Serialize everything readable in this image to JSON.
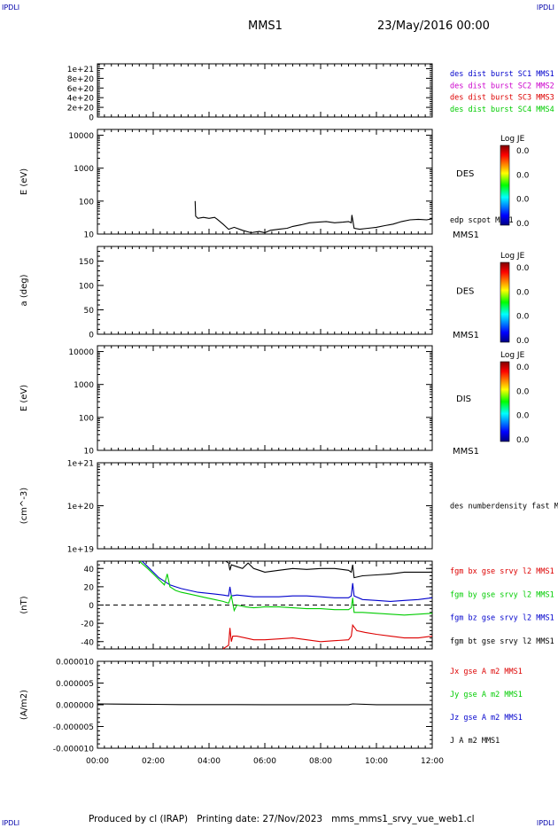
{
  "header": {
    "ipdli_left": "IPDLI",
    "ipdli_right": "IPDLI",
    "spacecraft": "MMS1",
    "datetime": "23/May/2016 00:00"
  },
  "footer": {
    "text": "Produced by cl (IRAP)   Printing date: 27/Nov/2023   mms_mms1_srvy_vue_web1.cl",
    "ipdli_left": "IPDLI",
    "ipdli_right": "IPDLI"
  },
  "colors": {
    "black": "#000000",
    "blue": "#0000cc",
    "magenta": "#cc00cc",
    "red": "#dd0000",
    "green": "#00cc00"
  },
  "chart_data": [
    {
      "type": "line",
      "panel": "dist",
      "ylabel": "",
      "ylim": [
        0,
        1.1e+21
      ],
      "yticks": [
        "0",
        "2e+20",
        "4e+20",
        "6e+20",
        "8e+20",
        "1e+21"
      ],
      "dashed_zero": true,
      "legend": [
        {
          "text": "des dist burst SC1 MMS1",
          "color": "blue"
        },
        {
          "text": "des dist burst SC2 MMS2",
          "color": "magenta"
        },
        {
          "text": "des dist burst SC3 MMS3",
          "color": "red"
        },
        {
          "text": "des dist burst SC4 MMS4",
          "color": "green"
        }
      ],
      "series": []
    },
    {
      "type": "line",
      "panel": "des_energy",
      "ylabel": "E (eV)",
      "yscale": "log",
      "ylim": [
        10,
        15000
      ],
      "yticks": [
        "10",
        "100",
        "1000",
        "10000"
      ],
      "label": "DES",
      "sublabel": "MMS1",
      "colorbar": {
        "title": "Log JE",
        "ticks": [
          "0.0",
          "0.0",
          "0.0",
          "0.0"
        ]
      },
      "series": [
        {
          "name": "edp scpot MMS1",
          "color": "black",
          "x": [
            3.5,
            3.52,
            3.6,
            3.8,
            4.0,
            4.2,
            4.3,
            4.5,
            4.7,
            4.9,
            5.2,
            5.5,
            5.8,
            6.0,
            6.2,
            6.5,
            6.8,
            7.0,
            7.3,
            7.6,
            7.9,
            8.2,
            8.5,
            8.8,
            9.0,
            9.1,
            9.12,
            9.2,
            9.4,
            9.7,
            10.0,
            10.3,
            10.6,
            10.9,
            11.2,
            11.5,
            11.8,
            12.0
          ],
          "y": [
            100,
            35,
            30,
            32,
            30,
            32,
            28,
            20,
            14,
            16,
            13,
            11,
            12,
            11,
            13,
            14,
            15,
            17,
            19,
            22,
            23,
            24,
            22,
            23,
            24,
            22,
            38,
            15,
            14,
            15,
            16,
            18,
            20,
            24,
            27,
            28,
            27,
            29
          ]
        }
      ]
    },
    {
      "type": "heatmap",
      "panel": "des_pitch",
      "ylabel": "a (deg)",
      "ylim": [
        0,
        180
      ],
      "yticks": [
        "0",
        "50",
        "100",
        "150"
      ],
      "label": "DES",
      "sublabel": "MMS1",
      "colorbar": {
        "title": "Log JE",
        "ticks": [
          "0.0",
          "0.0",
          "0.0",
          "0.0"
        ]
      },
      "series": []
    },
    {
      "type": "heatmap",
      "panel": "dis_energy",
      "ylabel": "E (eV)",
      "yscale": "log",
      "ylim": [
        10,
        15000
      ],
      "yticks": [
        "10",
        "100",
        "1000",
        "10000"
      ],
      "label": "DIS",
      "sublabel": "MMS1",
      "colorbar": {
        "title": "Log JE",
        "ticks": [
          "0.0",
          "0.0",
          "0.0",
          "0.0"
        ]
      },
      "series": []
    },
    {
      "type": "line",
      "panel": "density",
      "ylabel": "(cm^-3)",
      "yscale": "log",
      "ylim": [
        1e+19,
        1e+21
      ],
      "yticks": [
        "1e+19",
        "1e+20",
        "1e+21"
      ],
      "legend": [
        {
          "text": "des numberdensity fast M",
          "color": "black"
        }
      ],
      "series": []
    },
    {
      "type": "line",
      "panel": "fgm",
      "ylabel": "(nT)",
      "ylim": [
        -48,
        48
      ],
      "yticks": [
        "-40",
        "-20",
        "0",
        "20",
        "40"
      ],
      "dashed_zero": true,
      "legend": [
        {
          "text": "fgm bx gse srvy l2 MMS1",
          "color": "red"
        },
        {
          "text": "fgm by gse srvy l2 MMS1",
          "color": "green"
        },
        {
          "text": "fgm bz gse srvy l2 MMS1",
          "color": "blue"
        },
        {
          "text": "fgm bt gse srvy l2 MMS1",
          "color": "black"
        }
      ],
      "series": [
        {
          "color": "red",
          "x": [
            4.5,
            4.6,
            4.7,
            4.75,
            4.8,
            4.85,
            5.0,
            5.3,
            5.6,
            6.0,
            6.5,
            7.0,
            7.5,
            8.0,
            8.5,
            9.0,
            9.1,
            9.15,
            9.3,
            9.6,
            10.0,
            10.5,
            11.0,
            11.5,
            12.0
          ],
          "y": [
            -48,
            -46,
            -44,
            -25,
            -40,
            -34,
            -34,
            -36,
            -38,
            -38,
            -37,
            -36,
            -38,
            -40,
            -39,
            -38,
            -34,
            -22,
            -28,
            -30,
            -32,
            -34,
            -36,
            -36,
            -34
          ]
        },
        {
          "color": "blue",
          "x": [
            1.6,
            1.8,
            2.0,
            2.2,
            2.4,
            2.6,
            2.8,
            3.0,
            3.3,
            3.6,
            3.9,
            4.2,
            4.5,
            4.7,
            4.75,
            4.8,
            5.0,
            5.3,
            5.6,
            6.0,
            6.5,
            7.0,
            7.5,
            8.0,
            8.5,
            9.0,
            9.1,
            9.15,
            9.2,
            9.5,
            10.0,
            10.5,
            11.0,
            11.5,
            12.0
          ],
          "y": [
            48,
            42,
            36,
            30,
            26,
            22,
            20,
            18,
            16,
            14,
            13,
            12,
            11,
            10,
            20,
            10,
            11,
            10,
            9,
            9,
            9,
            10,
            10,
            9,
            8,
            8,
            10,
            24,
            10,
            6,
            5,
            4,
            5,
            6,
            8
          ]
        },
        {
          "color": "green",
          "x": [
            1.5,
            1.8,
            2.0,
            2.2,
            2.4,
            2.5,
            2.6,
            2.8,
            3.0,
            3.3,
            3.6,
            3.9,
            4.2,
            4.5,
            4.7,
            4.8,
            4.9,
            5.0,
            5.3,
            5.6,
            6.0,
            6.5,
            7.0,
            7.5,
            8.0,
            8.5,
            9.0,
            9.1,
            9.15,
            9.2,
            9.5,
            10.0,
            10.5,
            11.0,
            11.5,
            12.0
          ],
          "y": [
            48,
            40,
            34,
            28,
            22,
            34,
            20,
            16,
            14,
            12,
            10,
            8,
            6,
            4,
            2,
            10,
            -6,
            0,
            -2,
            -3,
            -2,
            -2,
            -3,
            -4,
            -4,
            -5,
            -5,
            -3,
            8,
            -8,
            -8,
            -9,
            -10,
            -11,
            -10,
            -9
          ]
        },
        {
          "color": "black",
          "x": [
            3.6,
            3.8,
            4.0,
            4.2,
            4.4,
            4.6,
            4.7,
            4.75,
            4.8,
            5.0,
            5.2,
            5.4,
            5.6,
            5.8,
            6.0,
            6.5,
            7.0,
            7.5,
            8.0,
            8.5,
            9.0,
            9.1,
            9.15,
            9.2,
            9.5,
            10.0,
            10.5,
            11.0,
            11.5,
            12.0
          ],
          "y": [
            49,
            49,
            49,
            49,
            49,
            48,
            46,
            38,
            44,
            42,
            40,
            46,
            40,
            38,
            36,
            38,
            40,
            39,
            40,
            40,
            38,
            36,
            44,
            30,
            32,
            33,
            34,
            36,
            36,
            36
          ]
        }
      ]
    },
    {
      "type": "line",
      "panel": "current",
      "ylabel": "(A/m2)",
      "ylim": [
        -1e-05,
        1e-05
      ],
      "yticks": [
        "-0.000010",
        "-0.000005",
        "0.000000",
        "0.000005",
        "0.000010"
      ],
      "xticks": [
        "00:00",
        "02:00",
        "04:00",
        "06:00",
        "08:00",
        "10:00",
        "12:00"
      ],
      "xlim": [
        0,
        12
      ],
      "legend": [
        {
          "text": "Jx gse A m2 MMS1",
          "color": "red"
        },
        {
          "text": "Jy gse A m2 MMS1",
          "color": "green"
        },
        {
          "text": "Jz gse A m2 MMS1",
          "color": "blue"
        },
        {
          "text": "J A m2 MMS1",
          "color": "black"
        }
      ],
      "series": [
        {
          "color": "black",
          "x": [
            0,
            1,
            2,
            3,
            4,
            5,
            6,
            7,
            8,
            9,
            9.15,
            10,
            11,
            12
          ],
          "y": [
            2e-07,
            1.5e-07,
            1e-07,
            5e-08,
            5e-08,
            5e-08,
            3e-08,
            3e-08,
            3e-08,
            3e-08,
            2e-07,
            3e-08,
            2e-08,
            2e-08
          ]
        }
      ]
    }
  ]
}
